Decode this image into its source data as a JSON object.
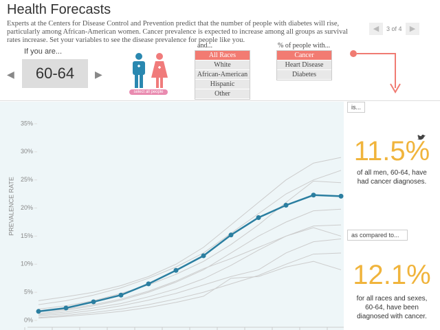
{
  "header": {
    "title": "Health Forecasts",
    "description": "Experts at the Centers for Disease Control and Prevention predict that the number of people with diabetes will rise, particularly among African-American women. Cancer prevalence is expected to increase among all groups as survival rates increase. Set your variables to see the disease prevalence for people like you.",
    "pager": "3 of 4"
  },
  "controls": {
    "age_prompt": "If you are...",
    "age": "60-64",
    "select_all": "select all people",
    "race_prompt": "and...",
    "races": [
      "All Races",
      "White",
      "African-American",
      "Hispanic",
      "Other"
    ],
    "condition_prompt": "% of people with...",
    "conditions": [
      "Cancer",
      "Heart Disease",
      "Diabetes"
    ]
  },
  "chart_data": {
    "type": "line",
    "y_label": "PREVALENCE RATE",
    "categories": [
      null,
      null,
      null,
      null,
      null,
      null,
      null,
      null,
      null,
      null,
      null,
      null
    ],
    "ylim": [
      0,
      35
    ],
    "yticks": [
      {
        "value": 0,
        "label": "0%"
      },
      {
        "value": 5,
        "label": "5%"
      },
      {
        "value": 10,
        "label": "10%"
      },
      {
        "value": 15,
        "label": "15%"
      },
      {
        "value": 20,
        "label": "20%"
      },
      {
        "value": 25,
        "label": "25%"
      },
      {
        "value": 30,
        "label": "30%"
      },
      {
        "value": 35,
        "label": "35%"
      }
    ],
    "series": [
      {
        "color": "#cccccc",
        "values": [
          3.5,
          4.2,
          5,
          6.2,
          7.8,
          10,
          13,
          17,
          21,
          25,
          28,
          29
        ]
      },
      {
        "color": "#cccccc",
        "values": [
          2.8,
          3.5,
          4.5,
          5.8,
          7.5,
          9.5,
          12,
          15.5,
          19,
          22.5,
          25,
          26.7
        ]
      },
      {
        "color": "#cccccc",
        "values": [
          2,
          2.6,
          3.5,
          4.8,
          6.3,
          8.2,
          10.5,
          13.5,
          17,
          21,
          24.8,
          24.5
        ]
      },
      {
        "color": "#cccccc",
        "values": [
          1.2,
          1.8,
          2.6,
          3.6,
          5,
          6.8,
          9,
          12,
          15,
          17.5,
          19.5,
          19.8
        ]
      },
      {
        "color": "#cccccc",
        "values": [
          1,
          1.5,
          2.2,
          3,
          4.2,
          5.6,
          7.4,
          9.8,
          12.5,
          15,
          16.8,
          17
        ]
      },
      {
        "color": "#cccccc",
        "values": [
          0.8,
          1.2,
          1.8,
          2.6,
          3.6,
          4.8,
          6.3,
          7.8,
          9,
          12,
          14,
          14.5
        ]
      },
      {
        "color": "#cccccc",
        "values": [
          0.5,
          0.9,
          1.4,
          2,
          2.8,
          3.8,
          5,
          6.5,
          8,
          10,
          11.8,
          12
        ]
      },
      {
        "color": "#cccccc",
        "values": [
          0.4,
          0.7,
          1.1,
          1.6,
          2.3,
          3.2,
          4.3,
          7.5,
          7.8,
          9.5,
          10.5,
          9
        ]
      },
      {
        "color": "#cccccc",
        "values": [
          1.5,
          2,
          2.8,
          3.8,
          5.2,
          7,
          9.2,
          11,
          13,
          15,
          16.5,
          15
        ]
      },
      {
        "color": "#2a7ea0",
        "marker": true,
        "values": [
          1.6,
          2.2,
          3.3,
          4.5,
          6.5,
          8.9,
          11.5,
          15.2,
          18.3,
          20.5,
          22.3,
          22.1
        ]
      }
    ]
  },
  "panel": {
    "intro": "is...",
    "primary_value": "11.5%",
    "primary_text": "of all men, 60-64, have had cancer diagnoses.",
    "compare": "as compared to...",
    "secondary_value": "12.1%",
    "secondary_text": "for all races and sexes, 60-64, have been diagnosed with cancer."
  }
}
